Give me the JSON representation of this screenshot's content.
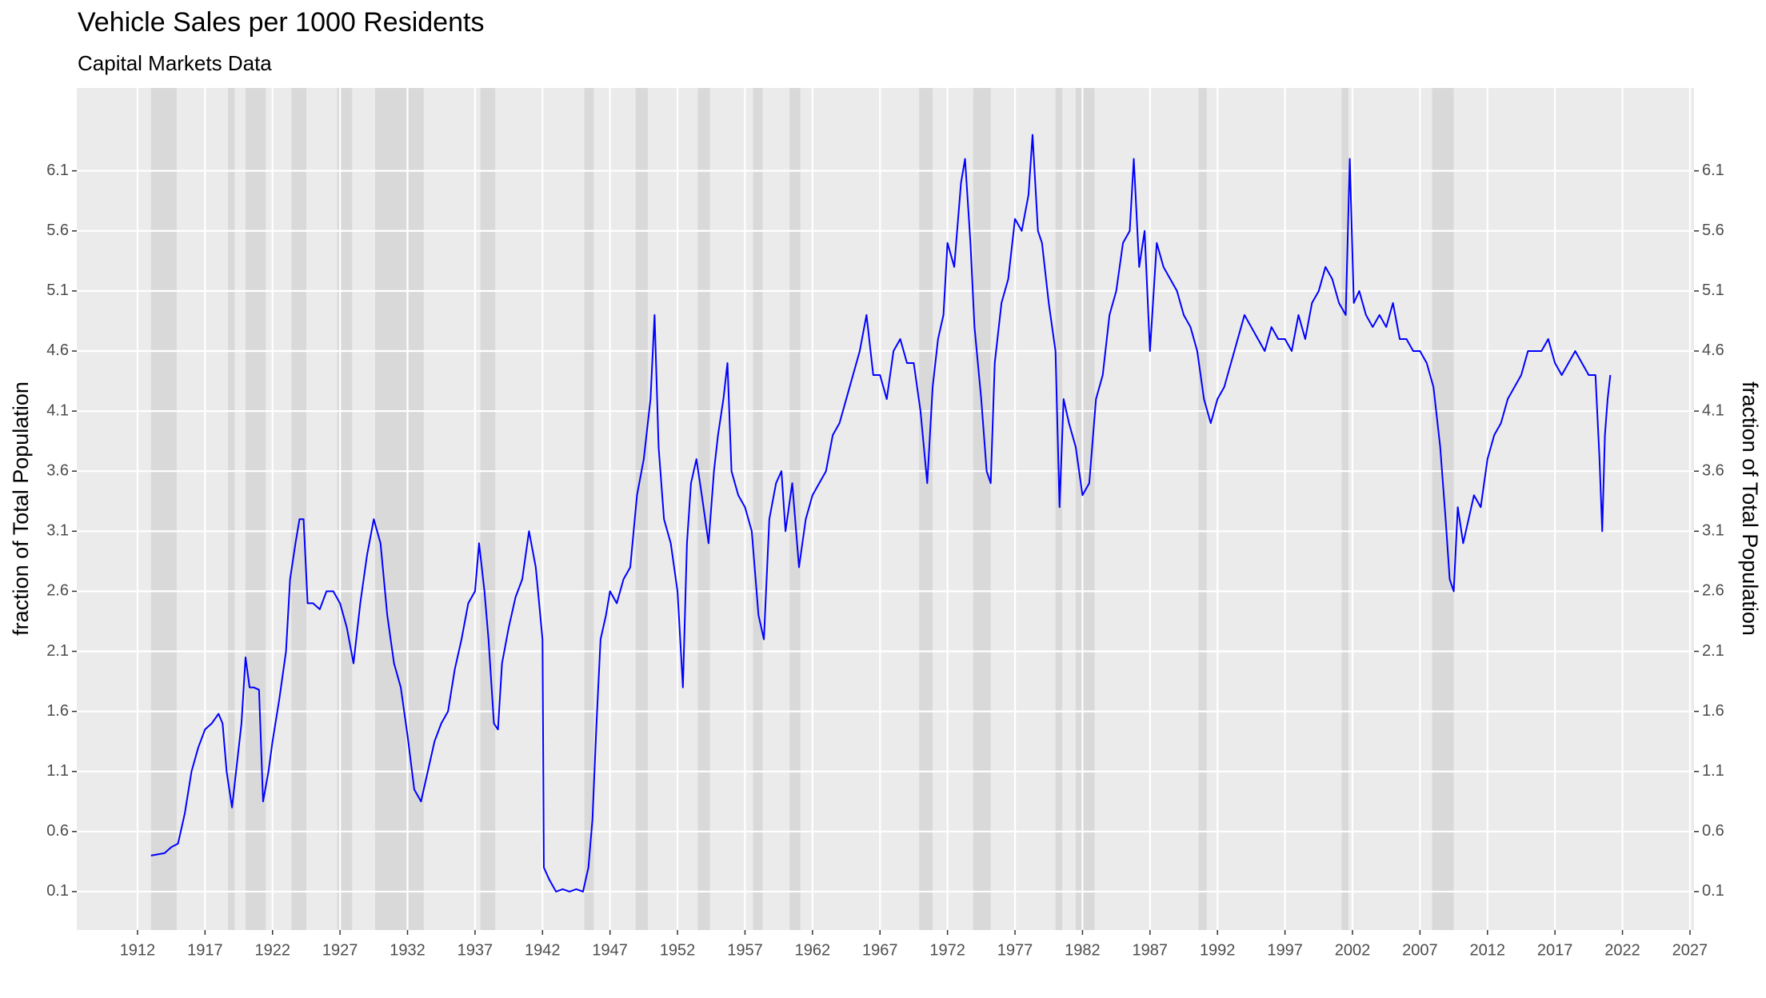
{
  "chart_data": {
    "type": "line",
    "title": "Vehicle Sales per 1000 Residents",
    "subtitle": "Capital Markets Data",
    "ylabel": "fraction of Total Population",
    "y2label": "fraction of Total Population",
    "x": [
      1913.0,
      1914.0,
      1914.5,
      1915.0,
      1915.5,
      1916.0,
      1916.5,
      1917.0,
      1917.5,
      1918.0,
      1918.3,
      1918.6,
      1919.0,
      1919.3,
      1919.7,
      1920.0,
      1920.3,
      1920.6,
      1921.0,
      1921.3,
      1921.7,
      1922.0,
      1922.5,
      1923.0,
      1923.3,
      1923.7,
      1924.0,
      1924.3,
      1924.6,
      1925.0,
      1925.5,
      1926.0,
      1926.5,
      1927.0,
      1927.5,
      1928.0,
      1928.5,
      1929.0,
      1929.5,
      1930.0,
      1930.5,
      1931.0,
      1931.5,
      1932.0,
      1932.5,
      1933.0,
      1933.5,
      1934.0,
      1934.5,
      1935.0,
      1935.5,
      1936.0,
      1936.5,
      1937.0,
      1937.3,
      1937.7,
      1938.0,
      1938.4,
      1938.7,
      1939.0,
      1939.5,
      1940.0,
      1940.5,
      1941.0,
      1941.5,
      1942.0,
      1942.1,
      1942.5,
      1943.0,
      1943.5,
      1944.0,
      1944.5,
      1945.0,
      1945.4,
      1945.7,
      1946.0,
      1946.3,
      1946.7,
      1947.0,
      1947.5,
      1948.0,
      1948.5,
      1949.0,
      1949.5,
      1950.0,
      1950.3,
      1950.6,
      1951.0,
      1951.5,
      1952.0,
      1952.4,
      1952.7,
      1953.0,
      1953.4,
      1953.8,
      1954.3,
      1954.7,
      1955.0,
      1955.4,
      1955.7,
      1956.0,
      1956.5,
      1957.0,
      1957.5,
      1958.0,
      1958.4,
      1958.8,
      1959.3,
      1959.7,
      1960.0,
      1960.5,
      1961.0,
      1961.5,
      1962.0,
      1962.5,
      1963.0,
      1963.5,
      1964.0,
      1964.5,
      1965.0,
      1965.5,
      1966.0,
      1966.5,
      1967.0,
      1967.5,
      1968.0,
      1968.5,
      1969.0,
      1969.5,
      1970.0,
      1970.5,
      1970.9,
      1971.3,
      1971.7,
      1972.0,
      1972.5,
      1973.0,
      1973.3,
      1973.7,
      1974.0,
      1974.5,
      1974.9,
      1975.2,
      1975.5,
      1976.0,
      1976.5,
      1977.0,
      1977.5,
      1978.0,
      1978.3,
      1978.7,
      1979.0,
      1979.5,
      1980.0,
      1980.3,
      1980.6,
      1981.0,
      1981.5,
      1982.0,
      1982.5,
      1983.0,
      1983.5,
      1984.0,
      1984.5,
      1985.0,
      1985.5,
      1985.8,
      1986.2,
      1986.6,
      1987.0,
      1987.5,
      1988.0,
      1988.5,
      1989.0,
      1989.5,
      1990.0,
      1990.5,
      1991.0,
      1991.5,
      1992.0,
      1992.5,
      1993.0,
      1993.5,
      1994.0,
      1994.5,
      1995.0,
      1995.5,
      1996.0,
      1996.5,
      1997.0,
      1997.5,
      1998.0,
      1998.5,
      1999.0,
      1999.5,
      2000.0,
      2000.5,
      2001.0,
      2001.5,
      2001.8,
      2002.1,
      2002.5,
      2003.0,
      2003.5,
      2004.0,
      2004.5,
      2005.0,
      2005.5,
      2006.0,
      2006.5,
      2007.0,
      2007.5,
      2008.0,
      2008.5,
      2008.9,
      2009.2,
      2009.5,
      2009.8,
      2010.2,
      2010.6,
      2011.0,
      2011.5,
      2012.0,
      2012.5,
      2013.0,
      2013.5,
      2014.0,
      2014.5,
      2015.0,
      2015.5,
      2016.0,
      2016.5,
      2017.0,
      2017.5,
      2018.0,
      2018.5,
      2019.0,
      2019.5,
      2020.0,
      2020.3,
      2020.5,
      2020.7,
      2020.9,
      2021.1
    ],
    "series": [
      {
        "color": "#0000ff",
        "values": [
          0.4,
          0.42,
          0.47,
          0.5,
          0.75,
          1.1,
          1.3,
          1.45,
          1.5,
          1.58,
          1.5,
          1.1,
          0.8,
          1.1,
          1.5,
          2.05,
          1.8,
          1.8,
          1.78,
          0.85,
          1.1,
          1.35,
          1.7,
          2.1,
          2.7,
          3.0,
          3.2,
          3.2,
          2.5,
          2.5,
          2.45,
          2.6,
          2.6,
          2.5,
          2.3,
          2.0,
          2.5,
          2.9,
          3.2,
          3.0,
          2.4,
          2.0,
          1.8,
          1.4,
          0.95,
          0.85,
          1.1,
          1.35,
          1.5,
          1.6,
          1.95,
          2.2,
          2.5,
          2.6,
          3.0,
          2.6,
          2.2,
          1.5,
          1.45,
          2.0,
          2.3,
          2.55,
          2.7,
          3.1,
          2.8,
          2.2,
          0.3,
          0.2,
          0.1,
          0.12,
          0.1,
          0.12,
          0.1,
          0.3,
          0.7,
          1.5,
          2.2,
          2.4,
          2.6,
          2.5,
          2.7,
          2.8,
          3.4,
          3.7,
          4.2,
          4.9,
          3.8,
          3.2,
          3.0,
          2.6,
          1.8,
          3.0,
          3.5,
          3.7,
          3.4,
          3.0,
          3.6,
          3.9,
          4.2,
          4.5,
          3.6,
          3.4,
          3.3,
          3.1,
          2.4,
          2.2,
          3.2,
          3.5,
          3.6,
          3.1,
          3.5,
          2.8,
          3.2,
          3.4,
          3.5,
          3.6,
          3.9,
          4.0,
          4.2,
          4.4,
          4.6,
          4.9,
          4.4,
          4.4,
          4.2,
          4.6,
          4.7,
          4.5,
          4.5,
          4.1,
          3.5,
          4.3,
          4.7,
          4.9,
          5.5,
          5.3,
          6.0,
          6.2,
          5.5,
          4.8,
          4.2,
          3.6,
          3.5,
          4.5,
          5.0,
          5.2,
          5.7,
          5.6,
          5.9,
          6.4,
          5.6,
          5.5,
          5.0,
          4.6,
          3.3,
          4.2,
          4.0,
          3.8,
          3.4,
          3.5,
          4.2,
          4.4,
          4.9,
          5.1,
          5.5,
          5.6,
          6.2,
          5.3,
          5.6,
          4.6,
          5.5,
          5.3,
          5.2,
          5.1,
          4.9,
          4.8,
          4.6,
          4.2,
          4.0,
          4.2,
          4.3,
          4.5,
          4.7,
          4.9,
          4.8,
          4.7,
          4.6,
          4.8,
          4.7,
          4.7,
          4.6,
          4.9,
          4.7,
          5.0,
          5.1,
          5.3,
          5.2,
          5.0,
          4.9,
          6.2,
          5.0,
          5.1,
          4.9,
          4.8,
          4.9,
          4.8,
          5.0,
          4.7,
          4.7,
          4.6,
          4.6,
          4.5,
          4.3,
          3.8,
          3.2,
          2.7,
          2.6,
          3.3,
          3.0,
          3.2,
          3.4,
          3.3,
          3.7,
          3.9,
          4.0,
          4.2,
          4.3,
          4.4,
          4.6,
          4.6,
          4.6,
          4.7,
          4.5,
          4.4,
          4.5,
          4.6,
          4.5,
          4.4,
          4.4,
          3.7,
          3.1,
          3.9,
          4.2,
          4.4
        ]
      }
    ],
    "recessions": [
      [
        1913.0,
        1914.9
      ],
      [
        1918.7,
        1919.2
      ],
      [
        1920.0,
        1921.5
      ],
      [
        1923.4,
        1924.5
      ],
      [
        1926.8,
        1927.9
      ],
      [
        1929.6,
        1933.2
      ],
      [
        1937.4,
        1938.5
      ],
      [
        1945.1,
        1945.8
      ],
      [
        1948.9,
        1949.8
      ],
      [
        1953.5,
        1954.4
      ],
      [
        1957.6,
        1958.3
      ],
      [
        1960.3,
        1961.1
      ],
      [
        1969.9,
        1970.9
      ],
      [
        1973.9,
        1975.2
      ],
      [
        1980.0,
        1980.5
      ],
      [
        1981.5,
        1982.9
      ],
      [
        1990.6,
        1991.2
      ],
      [
        2001.2,
        2001.7
      ],
      [
        2007.9,
        2009.5
      ]
    ],
    "recession_color": "#d9d9d9",
    "xlim": [
      1907.5,
      2027.3
    ],
    "xticks": [
      1912,
      1917,
      1922,
      1927,
      1932,
      1937,
      1942,
      1947,
      1952,
      1957,
      1962,
      1967,
      1972,
      1977,
      1982,
      1987,
      1992,
      1997,
      2002,
      2007,
      2012,
      2017,
      2022,
      2027
    ],
    "ylim": [
      -0.22,
      6.79
    ],
    "yticks": [
      0.1,
      0.6,
      1.1,
      1.6,
      2.1,
      2.6,
      3.1,
      3.6,
      4.1,
      4.6,
      5.1,
      5.6,
      6.1
    ],
    "y2lim": [
      -0.22,
      6.79
    ],
    "y2ticks": [
      0.1,
      0.6,
      1.1,
      1.6,
      2.1,
      2.6,
      3.1,
      3.6,
      4.1,
      4.6,
      5.1,
      5.6,
      6.1
    ],
    "grid": true
  }
}
